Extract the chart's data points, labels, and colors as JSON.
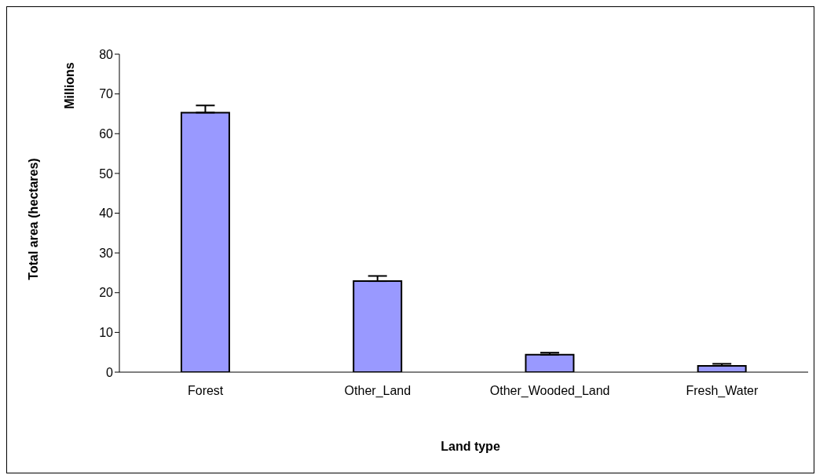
{
  "chart_data": {
    "type": "bar",
    "xlabel": "Land type",
    "ylabel": "Total area (hectares)",
    "annotations": [
      "Millions"
    ],
    "categories": [
      "Forest",
      "Other_Land",
      "Other_Wooded_Land",
      "Fresh_Water"
    ],
    "values": [
      65.3,
      22.9,
      4.4,
      1.6
    ],
    "errors": [
      [
        65.3,
        67.1
      ],
      [
        22.9,
        24.2
      ],
      [
        4.4,
        4.9
      ],
      [
        1.6,
        2.1
      ]
    ],
    "color": "#9999ff",
    "ylim": [
      0,
      80
    ],
    "yticks": [
      0,
      10,
      20,
      30,
      40,
      50,
      60,
      70,
      80
    ],
    "grid": false
  }
}
